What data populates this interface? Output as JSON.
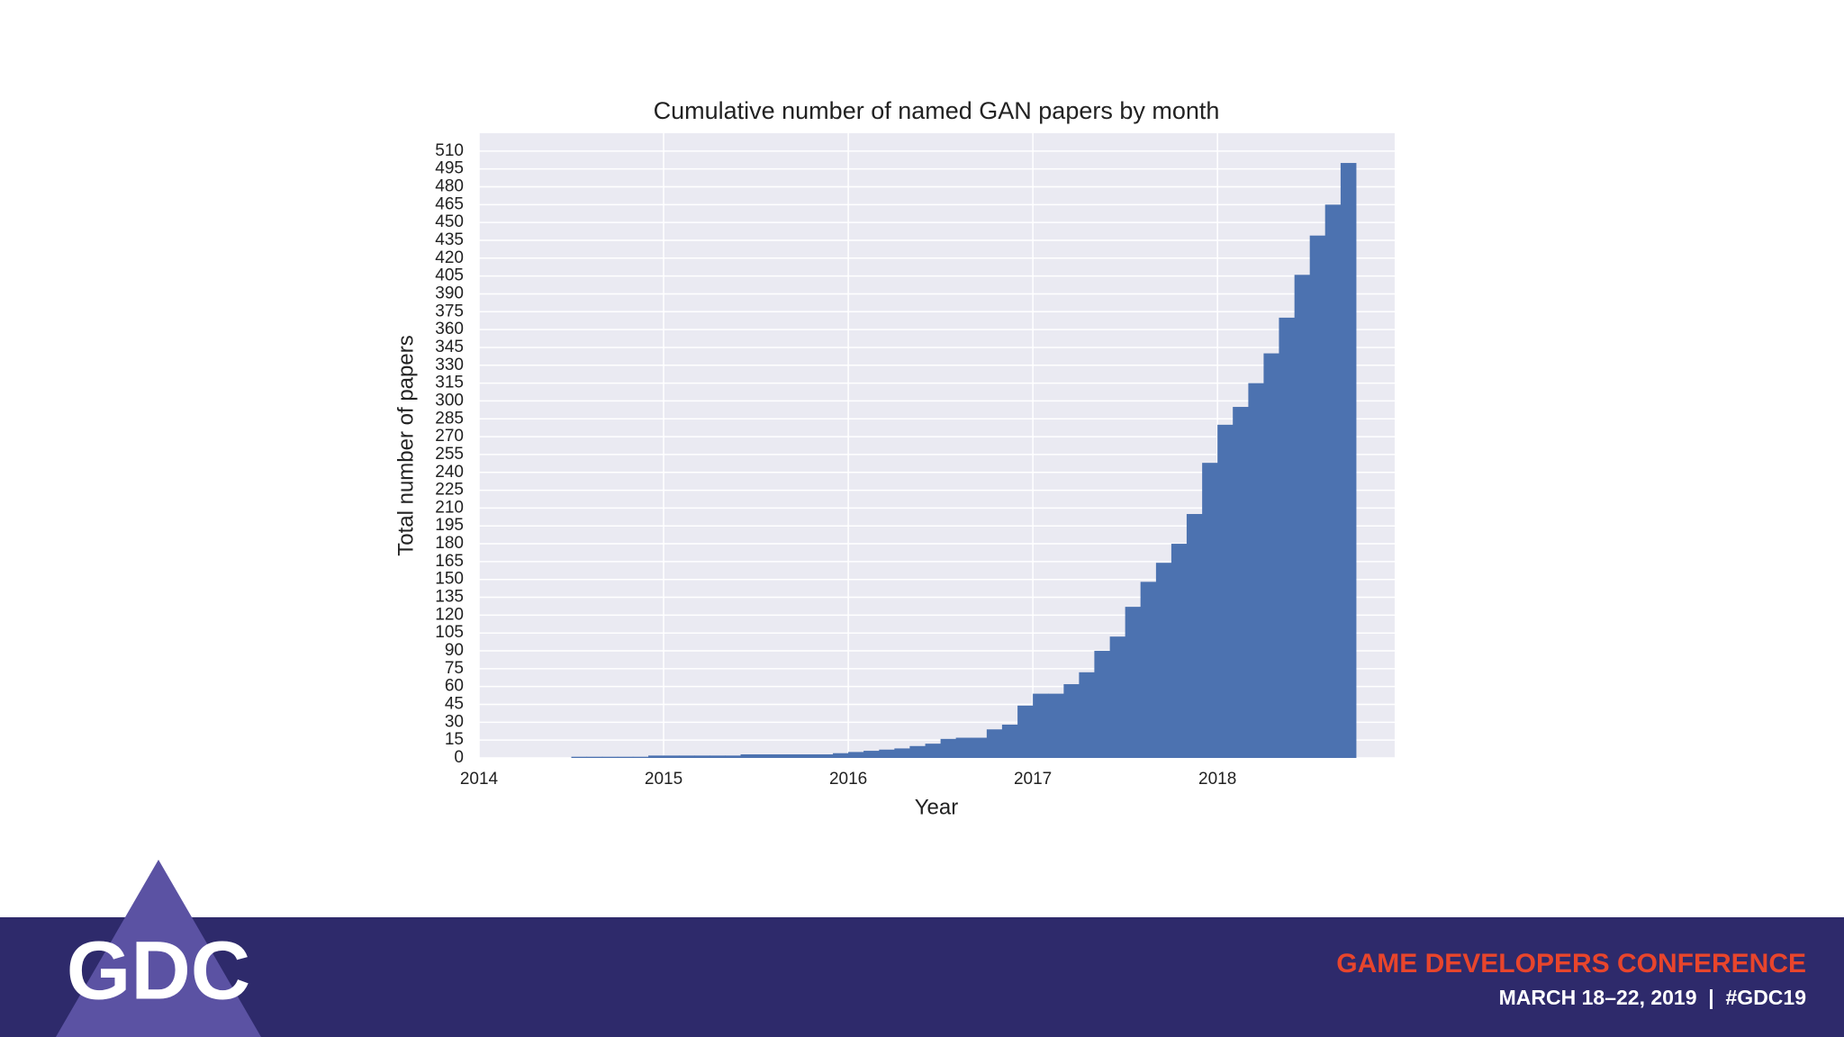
{
  "chart_data": {
    "type": "histogram",
    "title": "Cumulative number of named GAN papers by month",
    "xlabel": "Year",
    "ylabel": "Total number of papers",
    "bins": [
      2014.5,
      2014.583,
      2014.667,
      2014.75,
      2014.833,
      2014.917,
      2015,
      2015.083,
      2015.167,
      2015.25,
      2015.333,
      2015.417,
      2015.5,
      2015.583,
      2015.667,
      2015.75,
      2015.833,
      2015.917,
      2016,
      2016.083,
      2016.167,
      2016.25,
      2016.333,
      2016.417,
      2016.5,
      2016.583,
      2016.667,
      2016.75,
      2016.833,
      2016.917,
      2017,
      2017.083,
      2017.167,
      2017.25,
      2017.333,
      2017.417,
      2017.5,
      2017.583,
      2017.667,
      2017.75,
      2017.833,
      2017.917,
      2018,
      2018.083,
      2018.167,
      2018.25,
      2018.333,
      2018.417,
      2018.5,
      2018.583,
      2018.667,
      2018.75
    ],
    "values": [
      1,
      1,
      1,
      1,
      1,
      2,
      2,
      2,
      2,
      2,
      2,
      3,
      3,
      3,
      3,
      3,
      3,
      4,
      5,
      6,
      7,
      8,
      10,
      12,
      16,
      17,
      17,
      24,
      28,
      44,
      54,
      54,
      62,
      72,
      90,
      102,
      127,
      148,
      164,
      180,
      205,
      248,
      280,
      295,
      315,
      340,
      370,
      406,
      439,
      465,
      500
    ],
    "color": "#4c72b0",
    "xlim": [
      2014,
      2018.96
    ],
    "xticks": [
      2014,
      2015,
      2016,
      2017,
      2018
    ],
    "ylim": [
      0,
      525
    ],
    "yticks": [
      0,
      15,
      30,
      45,
      60,
      75,
      90,
      105,
      120,
      135,
      150,
      165,
      180,
      195,
      210,
      225,
      240,
      255,
      270,
      285,
      300,
      315,
      330,
      345,
      360,
      375,
      390,
      405,
      420,
      435,
      450,
      465,
      480,
      495,
      510
    ],
    "grid": true
  },
  "footer": {
    "logo": "GDC",
    "conference": "GAME DEVELOPERS CONFERENCE",
    "dates": "MARCH 18–22, 2019  |  #GDC19"
  }
}
